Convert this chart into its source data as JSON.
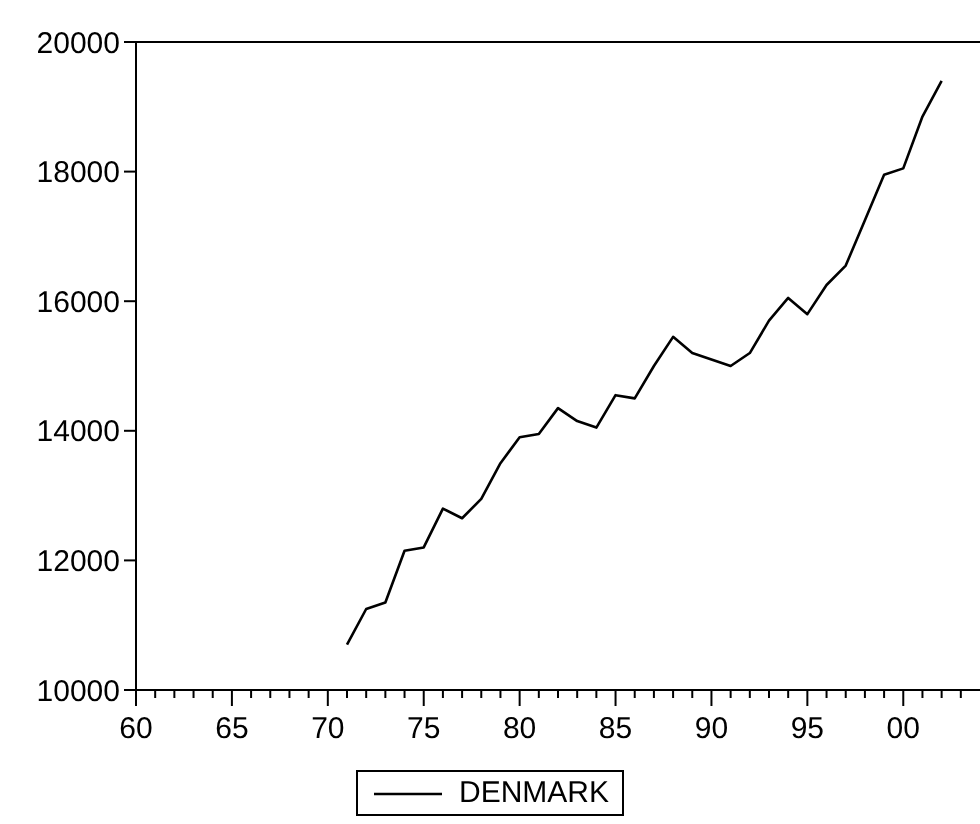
{
  "chart_data": {
    "type": "line",
    "x": [
      1971,
      1972,
      1973,
      1974,
      1975,
      1976,
      1977,
      1978,
      1979,
      1980,
      1981,
      1982,
      1983,
      1984,
      1985,
      1986,
      1987,
      1988,
      1989,
      1990,
      1991,
      1992,
      1993,
      1994,
      1995,
      1996,
      1997,
      1998,
      1999,
      2000,
      2001,
      2002
    ],
    "series": [
      {
        "name": "DENMARK",
        "color": "#000000",
        "values": [
          10700,
          11250,
          11350,
          12150,
          12200,
          12800,
          12650,
          12950,
          13500,
          13900,
          13950,
          14350,
          14150,
          14050,
          14550,
          14500,
          15000,
          15450,
          15200,
          15100,
          15000,
          15200,
          15700,
          16050,
          15800,
          16250,
          16550,
          17250,
          17950,
          18050,
          18850,
          19400
        ]
      }
    ],
    "xlim": [
      1960,
      2004
    ],
    "xticks": [
      {
        "value": 1960,
        "label": "60"
      },
      {
        "value": 1961,
        "label": null
      },
      {
        "value": 1962,
        "label": null
      },
      {
        "value": 1963,
        "label": null
      },
      {
        "value": 1964,
        "label": null
      },
      {
        "value": 1965,
        "label": "65"
      },
      {
        "value": 1966,
        "label": null
      },
      {
        "value": 1967,
        "label": null
      },
      {
        "value": 1968,
        "label": null
      },
      {
        "value": 1969,
        "label": null
      },
      {
        "value": 1970,
        "label": "70"
      },
      {
        "value": 1971,
        "label": null
      },
      {
        "value": 1972,
        "label": null
      },
      {
        "value": 1973,
        "label": null
      },
      {
        "value": 1974,
        "label": null
      },
      {
        "value": 1975,
        "label": "75"
      },
      {
        "value": 1976,
        "label": null
      },
      {
        "value": 1977,
        "label": null
      },
      {
        "value": 1978,
        "label": null
      },
      {
        "value": 1979,
        "label": null
      },
      {
        "value": 1980,
        "label": "80"
      },
      {
        "value": 1981,
        "label": null
      },
      {
        "value": 1982,
        "label": null
      },
      {
        "value": 1983,
        "label": null
      },
      {
        "value": 1984,
        "label": null
      },
      {
        "value": 1985,
        "label": "85"
      },
      {
        "value": 1986,
        "label": null
      },
      {
        "value": 1987,
        "label": null
      },
      {
        "value": 1988,
        "label": null
      },
      {
        "value": 1989,
        "label": null
      },
      {
        "value": 1990,
        "label": "90"
      },
      {
        "value": 1991,
        "label": null
      },
      {
        "value": 1992,
        "label": null
      },
      {
        "value": 1993,
        "label": null
      },
      {
        "value": 1994,
        "label": null
      },
      {
        "value": 1995,
        "label": "95"
      },
      {
        "value": 1996,
        "label": null
      },
      {
        "value": 1997,
        "label": null
      },
      {
        "value": 1998,
        "label": null
      },
      {
        "value": 1999,
        "label": null
      },
      {
        "value": 2000,
        "label": "00"
      },
      {
        "value": 2001,
        "label": null
      },
      {
        "value": 2002,
        "label": null
      },
      {
        "value": 2003,
        "label": null
      }
    ],
    "ylim": [
      10000,
      20000
    ],
    "yticks": [
      10000,
      12000,
      14000,
      16000,
      18000,
      20000
    ],
    "legend": "bottom",
    "marker": "none",
    "line_style": "solid"
  }
}
